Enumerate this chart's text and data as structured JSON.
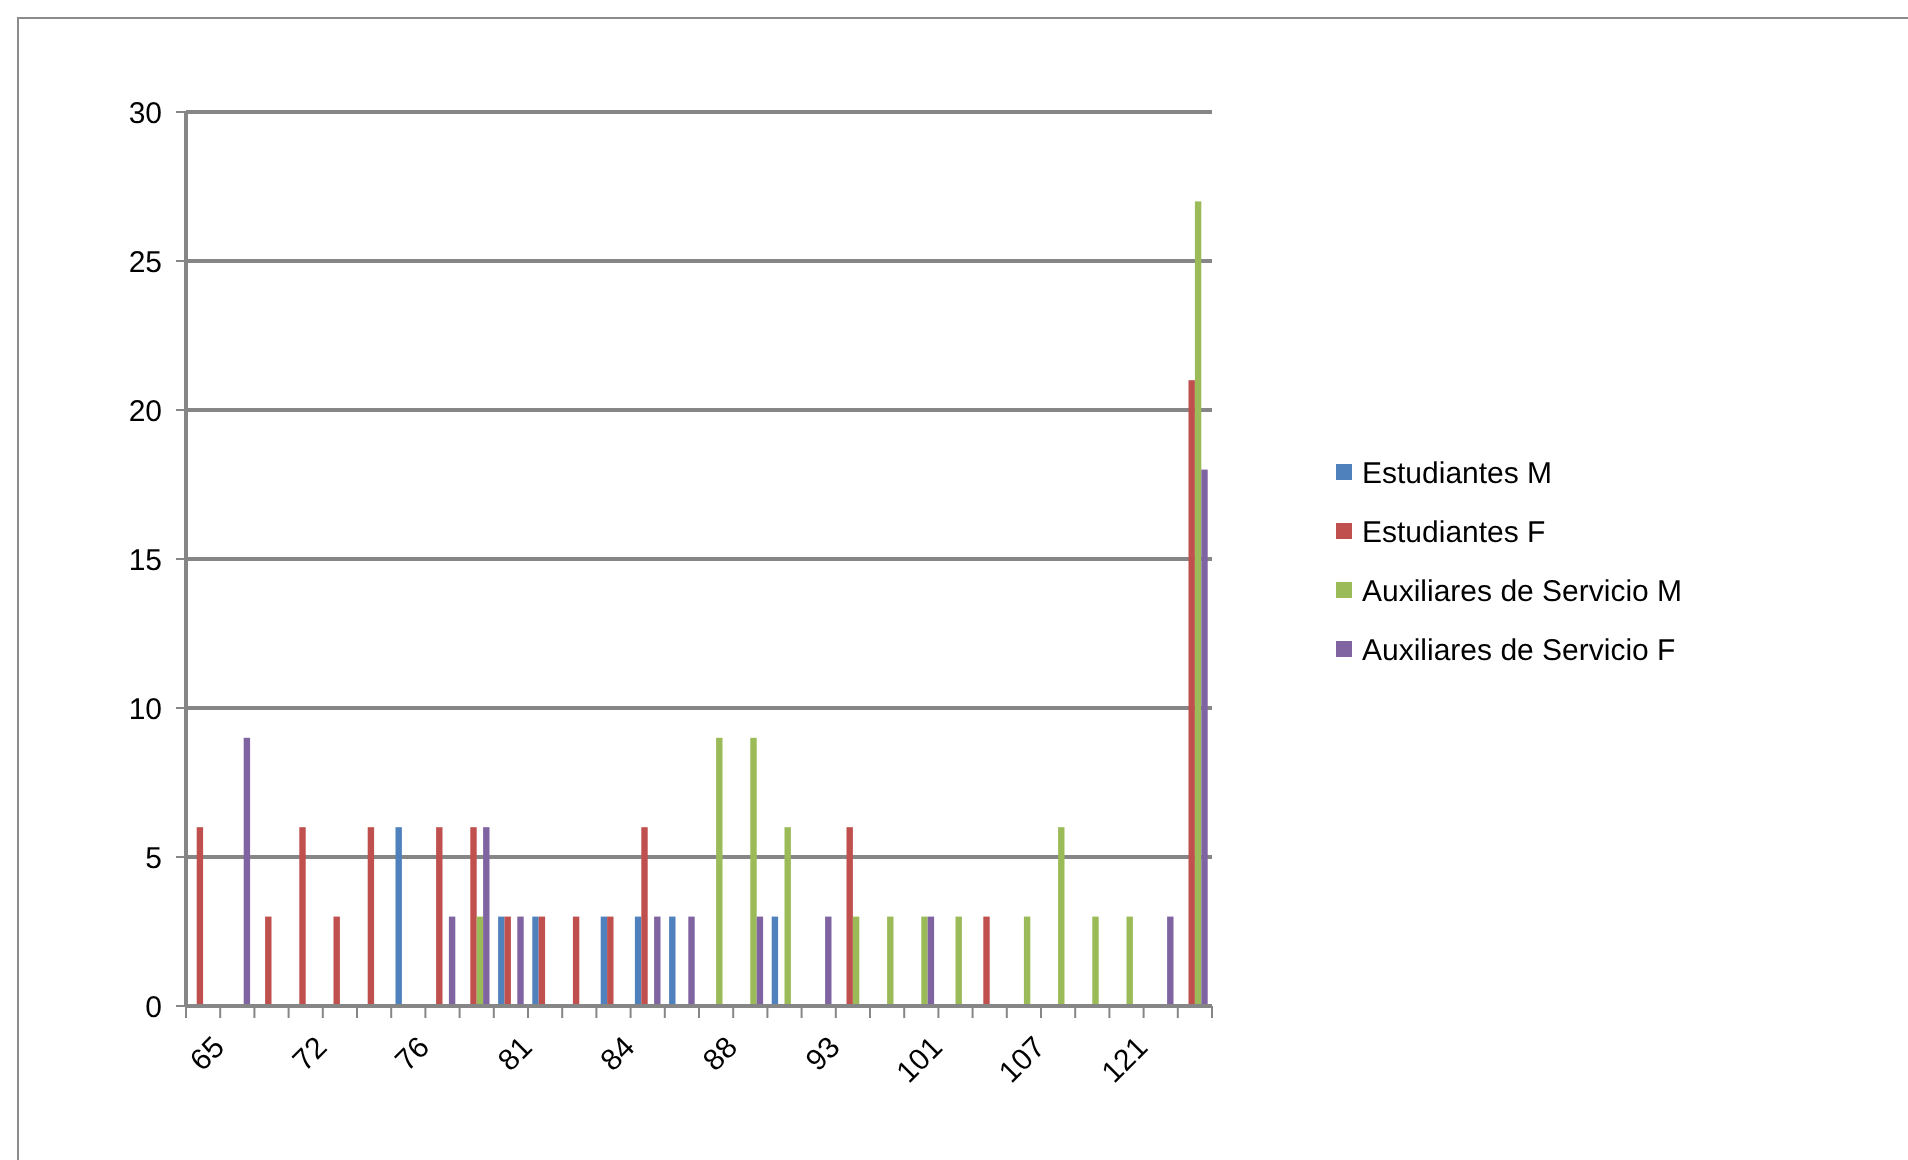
{
  "chart_data": {
    "type": "bar",
    "categories": [
      "65",
      null,
      null,
      "72",
      null,
      null,
      "76",
      null,
      null,
      "81",
      null,
      null,
      "84",
      null,
      null,
      "88",
      null,
      null,
      "93",
      null,
      null,
      "101",
      null,
      null,
      "107",
      null,
      null,
      "121",
      null,
      null
    ],
    "series": [
      {
        "name": "Estudiantes M",
        "color": "#4f81bd",
        "values": [
          null,
          null,
          null,
          null,
          null,
          null,
          6,
          null,
          null,
          3,
          3,
          null,
          3,
          3,
          3,
          null,
          null,
          3,
          null,
          null,
          null,
          null,
          null,
          null,
          null,
          null,
          null,
          null,
          null,
          null
        ]
      },
      {
        "name": "Estudiantes F",
        "color": "#c0504d",
        "values": [
          6,
          null,
          3,
          6,
          3,
          6,
          null,
          6,
          6,
          3,
          3,
          3,
          3,
          6,
          null,
          null,
          null,
          null,
          null,
          6,
          null,
          null,
          null,
          3,
          null,
          null,
          null,
          null,
          null,
          21
        ]
      },
      {
        "name": "Auxiliares de Servicio M",
        "color": "#9bbb59",
        "values": [
          null,
          null,
          null,
          null,
          null,
          null,
          null,
          null,
          3,
          null,
          null,
          null,
          null,
          null,
          null,
          9,
          9,
          6,
          null,
          3,
          3,
          3,
          3,
          null,
          3,
          6,
          3,
          3,
          null,
          27
        ]
      },
      {
        "name": "Auxiliares de Servicio F",
        "color": "#8064a2",
        "values": [
          null,
          9,
          null,
          null,
          null,
          null,
          null,
          3,
          6,
          3,
          null,
          null,
          null,
          3,
          3,
          null,
          3,
          null,
          3,
          null,
          null,
          3,
          null,
          null,
          null,
          null,
          null,
          null,
          3,
          18
        ]
      }
    ],
    "ylim": [
      0,
      30
    ],
    "yticks": [
      0,
      5,
      10,
      15,
      20,
      25,
      30
    ],
    "grid": "y",
    "legend": "right"
  }
}
